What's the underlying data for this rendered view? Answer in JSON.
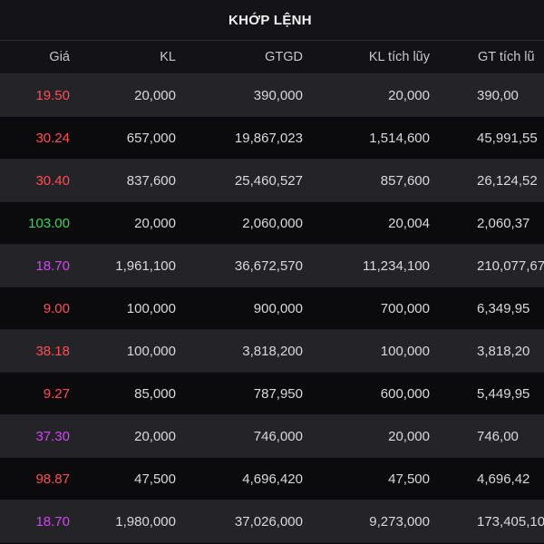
{
  "title": "KHỚP LỆNH",
  "columns": [
    "Giá",
    "KL",
    "GTGD",
    "KL tích lũy",
    "GT tích lũ"
  ],
  "colors": {
    "red": "#ff4d55",
    "green": "#33d65a",
    "purple": "#d444f5"
  },
  "rows": [
    {
      "price": "19.50",
      "price_color": "#ff4d55",
      "kl": "20,000",
      "gtgd": "390,000",
      "kl_tl": "20,000",
      "gt_tl": "390,00"
    },
    {
      "price": "30.24",
      "price_color": "#ff4d55",
      "kl": "657,000",
      "gtgd": "19,867,023",
      "kl_tl": "1,514,600",
      "gt_tl": "45,991,55"
    },
    {
      "price": "30.40",
      "price_color": "#ff4d55",
      "kl": "837,600",
      "gtgd": "25,460,527",
      "kl_tl": "857,600",
      "gt_tl": "26,124,52"
    },
    {
      "price": "103.00",
      "price_color": "#33d65a",
      "kl": "20,000",
      "gtgd": "2,060,000",
      "kl_tl": "20,004",
      "gt_tl": "2,060,37"
    },
    {
      "price": "18.70",
      "price_color": "#d444f5",
      "kl": "1,961,100",
      "gtgd": "36,672,570",
      "kl_tl": "11,234,100",
      "gt_tl": "210,077,67"
    },
    {
      "price": "9.00",
      "price_color": "#ff4d55",
      "kl": "100,000",
      "gtgd": "900,000",
      "kl_tl": "700,000",
      "gt_tl": "6,349,95"
    },
    {
      "price": "38.18",
      "price_color": "#ff4d55",
      "kl": "100,000",
      "gtgd": "3,818,200",
      "kl_tl": "100,000",
      "gt_tl": "3,818,20"
    },
    {
      "price": "9.27",
      "price_color": "#ff4d55",
      "kl": "85,000",
      "gtgd": "787,950",
      "kl_tl": "600,000",
      "gt_tl": "5,449,95"
    },
    {
      "price": "37.30",
      "price_color": "#d444f5",
      "kl": "20,000",
      "gtgd": "746,000",
      "kl_tl": "20,000",
      "gt_tl": "746,00"
    },
    {
      "price": "98.87",
      "price_color": "#ff4d55",
      "kl": "47,500",
      "gtgd": "4,696,420",
      "kl_tl": "47,500",
      "gt_tl": "4,696,42"
    },
    {
      "price": "18.70",
      "price_color": "#d444f5",
      "kl": "1,980,000",
      "gtgd": "37,026,000",
      "kl_tl": "9,273,000",
      "gt_tl": "173,405,10"
    }
  ]
}
